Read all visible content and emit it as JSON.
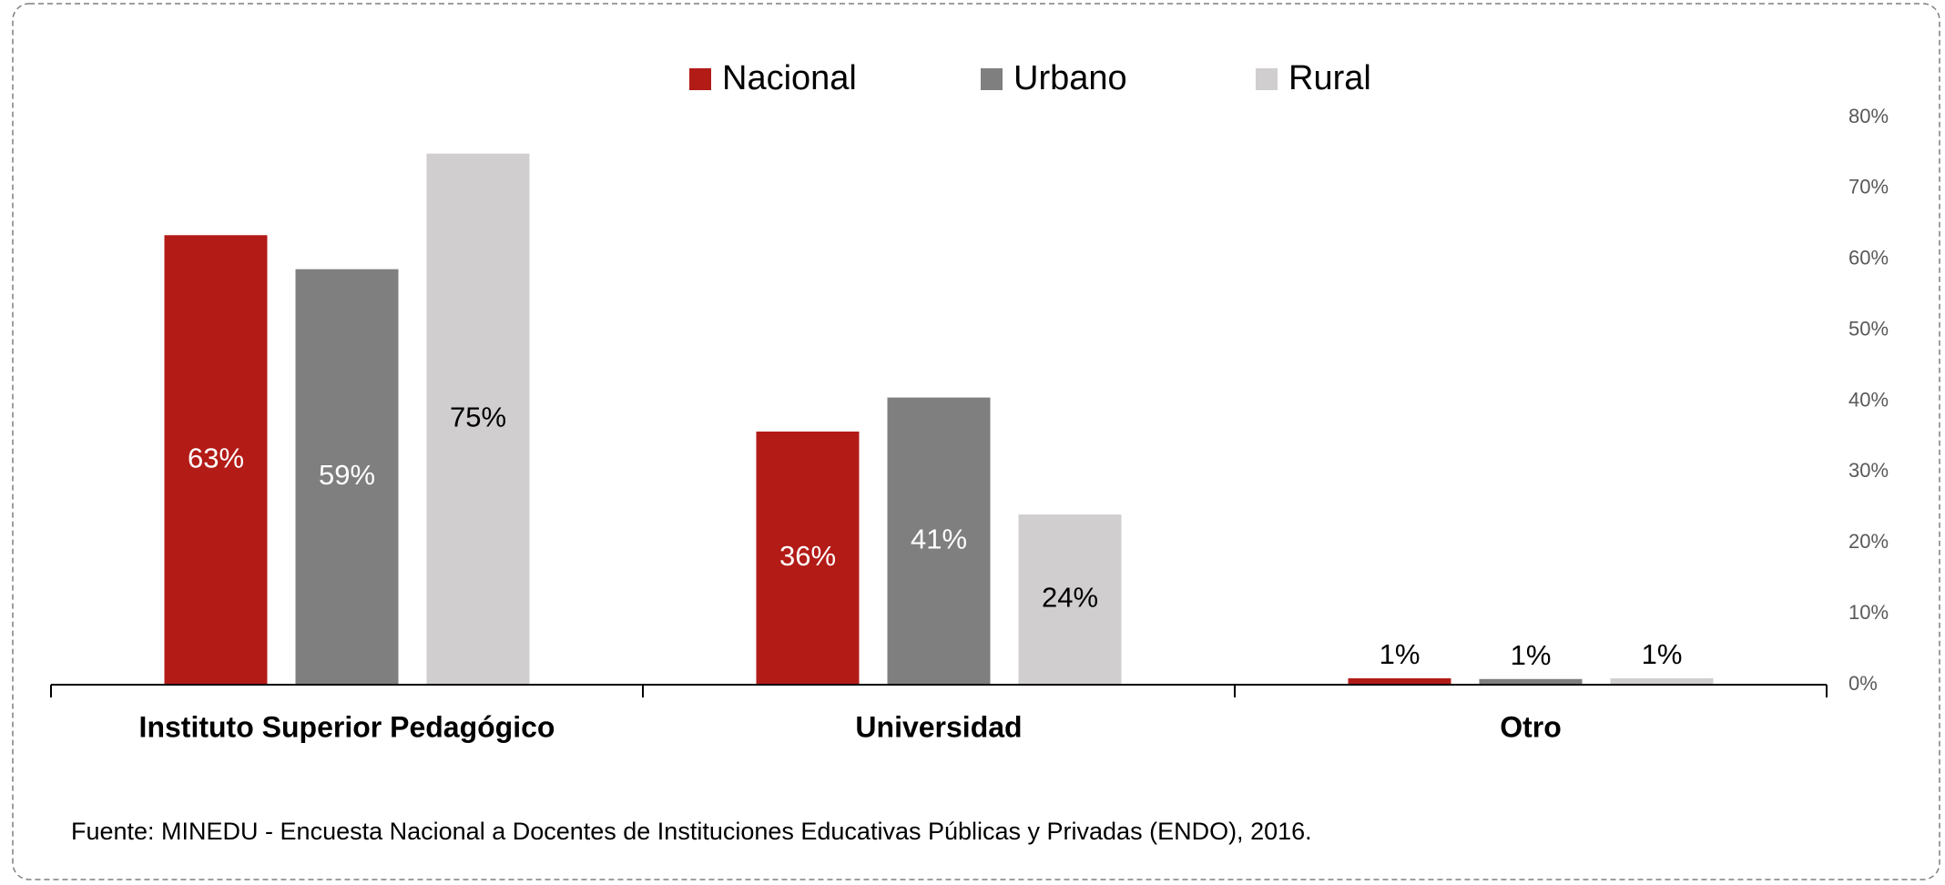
{
  "chart_data": {
    "type": "bar",
    "categories": [
      "Instituto Superior Pedagógico",
      "Universidad",
      "Otro"
    ],
    "series": [
      {
        "name": "Nacional",
        "color": "#b31b17",
        "values": [
          63.4,
          35.7,
          0.9
        ],
        "value_labels": [
          "63%",
          "36%",
          "1%"
        ]
      },
      {
        "name": "Urbano",
        "color": "#7f7f7f",
        "values": [
          58.6,
          40.5,
          0.8
        ],
        "value_labels": [
          "59%",
          "41%",
          "1%"
        ]
      },
      {
        "name": "Rural",
        "color": "#d0cece",
        "values": [
          74.9,
          24.0,
          0.9
        ],
        "value_labels": [
          "75%",
          "24%",
          "1%"
        ]
      }
    ],
    "ylim": [
      0,
      80
    ],
    "yticks": [
      {
        "value": 0,
        "label": "0%"
      },
      {
        "value": 10,
        "label": "10%"
      },
      {
        "value": 20,
        "label": "20%"
      },
      {
        "value": 30,
        "label": "30%"
      },
      {
        "value": 40,
        "label": "40%"
      },
      {
        "value": 50,
        "label": "50%"
      },
      {
        "value": 60,
        "label": "60%"
      },
      {
        "value": 70,
        "label": "70%"
      },
      {
        "value": 80,
        "label": "80%"
      }
    ],
    "grid": false,
    "legend": "top",
    "source": "Fuente: MINEDU - Encuesta Nacional a Docentes de Instituciones Educativas Públicas y Privadas (ENDO), 2016."
  }
}
